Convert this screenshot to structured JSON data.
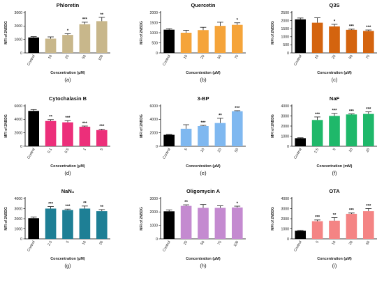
{
  "chart_data": [
    {
      "type": "bar",
      "panel_label": "(a)",
      "title": "Phloretin",
      "ylabel": "MFI of 2NBDG",
      "xlabel": "Concentration (μM)",
      "categories": [
        "Control",
        "10",
        "25",
        "50",
        "100"
      ],
      "values": [
        1150,
        1060,
        1340,
        2130,
        2360
      ],
      "errors": [
        60,
        130,
        90,
        150,
        280
      ],
      "significance": [
        "",
        "",
        "*",
        "***",
        "**"
      ],
      "colors": [
        "#000000",
        "#c8b78b",
        "#c8b78b",
        "#c8b78b",
        "#c8b78b"
      ],
      "ylim": [
        0,
        3000
      ],
      "yticks": [
        0,
        1000,
        2000,
        3000
      ]
    },
    {
      "type": "bar",
      "panel_label": "(b)",
      "title": "Quercetin",
      "ylabel": "MFI of 2NBDG",
      "xlabel": "Concentration (μM)",
      "categories": [
        "Control",
        "10",
        "25",
        "50",
        "75"
      ],
      "values": [
        1150,
        1000,
        1130,
        1340,
        1390
      ],
      "errors": [
        50,
        120,
        140,
        180,
        100
      ],
      "significance": [
        "",
        "",
        "",
        "",
        "*"
      ],
      "colors": [
        "#000000",
        "#f5a43a",
        "#f5a43a",
        "#f5a43a",
        "#f5a43a"
      ],
      "ylim": [
        0,
        2000
      ],
      "yticks": [
        0,
        500,
        1000,
        1500,
        2000
      ]
    },
    {
      "type": "bar",
      "panel_label": "(c)",
      "title": "Q3S",
      "ylabel": "MFI of 2NBDG",
      "xlabel": "Concentration (μM)",
      "categories": [
        "Control",
        "10",
        "25",
        "50",
        "75"
      ],
      "values": [
        2080,
        1870,
        1640,
        1430,
        1360
      ],
      "errors": [
        80,
        300,
        130,
        40,
        60
      ],
      "significance": [
        "",
        "",
        "*",
        "***",
        "***"
      ],
      "colors": [
        "#000000",
        "#d4640f",
        "#d4640f",
        "#d4640f",
        "#d4640f"
      ],
      "ylim": [
        0,
        2500
      ],
      "yticks": [
        0,
        500,
        1000,
        1500,
        2000,
        2500
      ]
    },
    {
      "type": "bar",
      "panel_label": "(d)",
      "title": "Cytochalasin B",
      "ylabel": "MFI of 2NBDG",
      "xlabel": "Concentration (μM)",
      "categories": [
        "Control",
        "0.1",
        "0.5",
        "1",
        "5"
      ],
      "values": [
        5250,
        3750,
        3550,
        2900,
        2400
      ],
      "errors": [
        200,
        200,
        250,
        100,
        150
      ],
      "significance": [
        "",
        "**",
        "***",
        "***",
        "***"
      ],
      "colors": [
        "#000000",
        "#ec2f7a",
        "#ec2f7a",
        "#ec2f7a",
        "#ec2f7a"
      ],
      "ylim": [
        0,
        6000
      ],
      "yticks": [
        0,
        2000,
        4000,
        6000
      ]
    },
    {
      "type": "bar",
      "panel_label": "(e)",
      "title": "3-BP",
      "ylabel": "MFI of 2NBDG",
      "xlabel": "Concentration (μM)",
      "categories": [
        "Control",
        "5",
        "10",
        "20",
        "50"
      ],
      "values": [
        1700,
        2600,
        3000,
        3450,
        5200
      ],
      "errors": [
        50,
        600,
        100,
        700,
        80
      ],
      "significance": [
        "",
        "",
        "***",
        "**",
        "***"
      ],
      "colors": [
        "#000000",
        "#7fb8f0",
        "#7fb8f0",
        "#7fb8f0",
        "#7fb8f0"
      ],
      "ylim": [
        0,
        6000
      ],
      "yticks": [
        0,
        2000,
        4000,
        6000
      ]
    },
    {
      "type": "bar",
      "panel_label": "(f)",
      "title": "NaF",
      "ylabel": "MFI of 2NBDG",
      "xlabel": "Concentration (mM)",
      "categories": [
        "Control",
        "2.5",
        "5",
        "10",
        "20"
      ],
      "values": [
        800,
        2600,
        3000,
        3150,
        3200
      ],
      "errors": [
        40,
        300,
        250,
        50,
        200
      ],
      "significance": [
        "",
        "***",
        "***",
        "***",
        "***"
      ],
      "colors": [
        "#000000",
        "#1fb86a",
        "#1fb86a",
        "#1fb86a",
        "#1fb86a"
      ],
      "ylim": [
        0,
        4000
      ],
      "yticks": [
        0,
        1000,
        2000,
        3000,
        4000
      ]
    },
    {
      "type": "bar",
      "panel_label": "(g)",
      "title": "NaN₃",
      "ylabel": "MFI of 2NBDG",
      "xlabel": "Concentration (μM)",
      "categories": [
        "Control",
        "2.5",
        "5",
        "10",
        "20"
      ],
      "values": [
        2050,
        3000,
        2850,
        3000,
        2750
      ],
      "errors": [
        100,
        200,
        100,
        250,
        150
      ],
      "significance": [
        "",
        "***",
        "***",
        "**",
        "**"
      ],
      "colors": [
        "#000000",
        "#1e7f95",
        "#1e7f95",
        "#1e7f95",
        "#1e7f95"
      ],
      "ylim": [
        0,
        4000
      ],
      "yticks": [
        0,
        1000,
        2000,
        3000,
        4000
      ]
    },
    {
      "type": "bar",
      "panel_label": "(h)",
      "title": "Oligomycin A",
      "ylabel": "MFI of 2NBDG",
      "xlabel": "Concentration (μM)",
      "categories": [
        "Control",
        "25",
        "50",
        "75",
        "100"
      ],
      "values": [
        2050,
        2450,
        2300,
        2300,
        2330
      ],
      "errors": [
        100,
        80,
        250,
        150,
        100
      ],
      "significance": [
        "",
        "**",
        "",
        "",
        "*"
      ],
      "colors": [
        "#000000",
        "#c48ad0",
        "#c48ad0",
        "#c48ad0",
        "#c48ad0"
      ],
      "ylim": [
        0,
        3000
      ],
      "yticks": [
        0,
        1000,
        2000,
        3000
      ]
    },
    {
      "type": "bar",
      "panel_label": "(i)",
      "title": "OTA",
      "ylabel": "MFI of 2NBDG",
      "xlabel": "Concentration (μM)",
      "categories": [
        "Control",
        "5",
        "10",
        "20",
        "50"
      ],
      "values": [
        800,
        1750,
        1800,
        2480,
        2750
      ],
      "errors": [
        40,
        120,
        300,
        80,
        250
      ],
      "significance": [
        "",
        "***",
        "**",
        "***",
        "***"
      ],
      "colors": [
        "#000000",
        "#f48484",
        "#f48484",
        "#f48484",
        "#f48484"
      ],
      "ylim": [
        0,
        4000
      ],
      "yticks": [
        0,
        1000,
        2000,
        3000,
        4000
      ]
    }
  ]
}
